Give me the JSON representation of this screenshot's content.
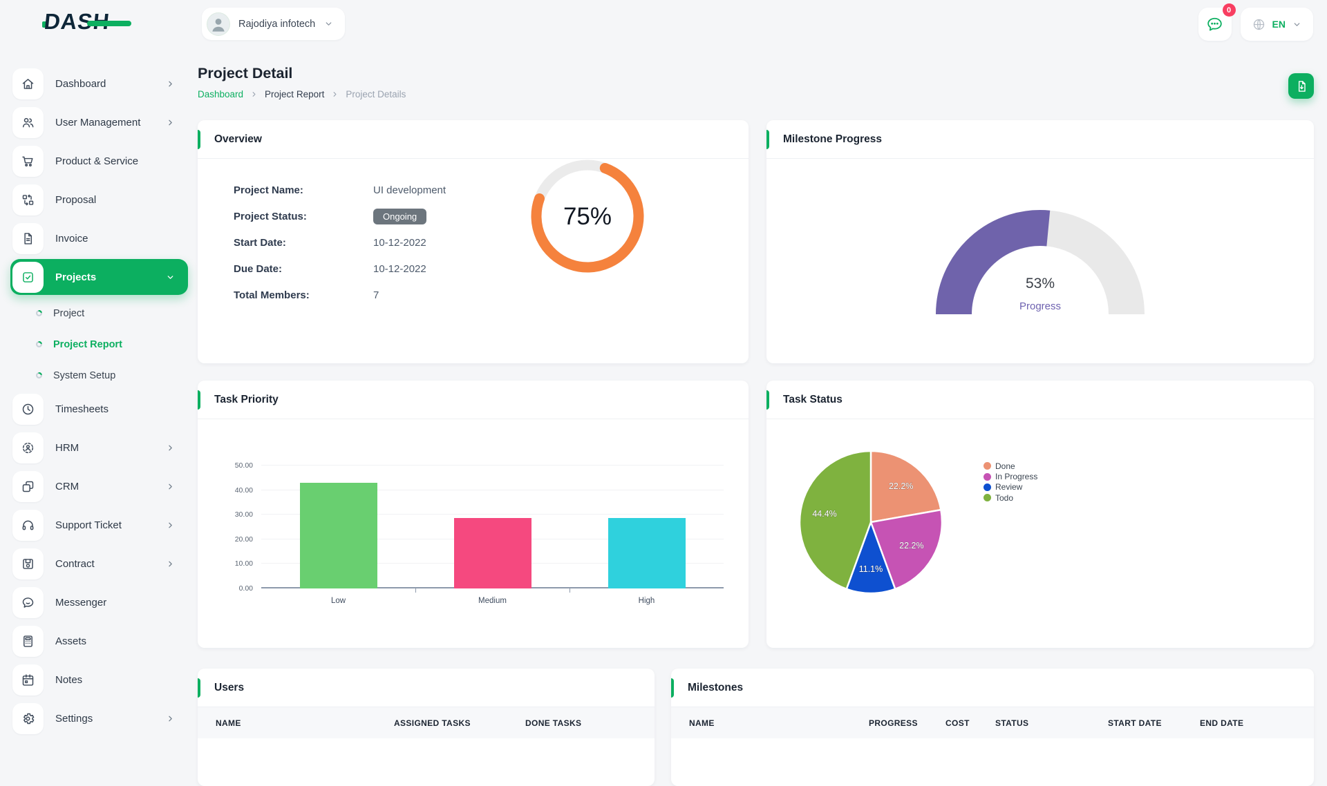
{
  "header": {
    "brand": "DASH",
    "company": {
      "name": "Rajodiya infotech",
      "avatar_icon": "person-icon"
    },
    "messages": {
      "icon": "chat-bubble-icon",
      "badge": "0"
    },
    "language": {
      "icon": "globe-icon",
      "code": "EN"
    }
  },
  "sidebar": {
    "items": [
      {
        "label": "Dashboard",
        "icon": "home-icon",
        "chevron": "right"
      },
      {
        "label": "User Management",
        "icon": "users-icon",
        "chevron": "right"
      },
      {
        "label": "Product & Service",
        "icon": "cart-icon"
      },
      {
        "label": "Proposal",
        "icon": "swap-icon"
      },
      {
        "label": "Invoice",
        "icon": "invoice-icon"
      },
      {
        "label": "Projects",
        "icon": "checkbox-icon",
        "chevron": "down",
        "active": true,
        "children": [
          {
            "label": "Project"
          },
          {
            "label": "Project Report",
            "active": true
          },
          {
            "label": "System Setup"
          }
        ]
      },
      {
        "label": "Timesheets",
        "icon": "clock-icon"
      },
      {
        "label": "HRM",
        "icon": "hrm-icon",
        "chevron": "right"
      },
      {
        "label": "CRM",
        "icon": "crm-icon",
        "chevron": "right"
      },
      {
        "label": "Support Ticket",
        "icon": "headset-icon",
        "chevron": "right"
      },
      {
        "label": "Contract",
        "icon": "save-icon",
        "chevron": "right"
      },
      {
        "label": "Messenger",
        "icon": "chat-icon"
      },
      {
        "label": "Assets",
        "icon": "calculator-icon"
      },
      {
        "label": "Notes",
        "icon": "calendar-icon"
      },
      {
        "label": "Settings",
        "icon": "gear-icon",
        "chevron": "right"
      }
    ]
  },
  "page": {
    "title": "Project Detail",
    "breadcrumb": [
      {
        "label": "Dashboard",
        "state": "link"
      },
      {
        "label": "Project Report",
        "state": "normal"
      },
      {
        "label": "Project Details",
        "state": "current"
      }
    ],
    "export_icon": "file-export-icon"
  },
  "overview": {
    "title": "Overview",
    "fields": [
      {
        "label": "Project Name:",
        "value": "UI development",
        "type": "text"
      },
      {
        "label": "Project Status:",
        "value": "Ongoing",
        "type": "badge"
      },
      {
        "label": "Start Date:",
        "value": "10-12-2022",
        "type": "text"
      },
      {
        "label": "Due Date:",
        "value": "10-12-2022",
        "type": "text"
      },
      {
        "label": "Total Members:",
        "value": "7",
        "type": "text"
      }
    ]
  },
  "milestone_card": {
    "title": "Milestone Progress"
  },
  "task_priority_card": {
    "title": "Task Priority"
  },
  "task_status_card": {
    "title": "Task Status"
  },
  "users_card": {
    "title": "Users",
    "columns": [
      "NAME",
      "ASSIGNED TASKS",
      "DONE TASKS"
    ]
  },
  "milestones_card": {
    "title": "Milestones",
    "columns": [
      "NAME",
      "PROGRESS",
      "COST",
      "STATUS",
      "START DATE",
      "END DATE"
    ]
  },
  "colors": {
    "primary": "#0CAF60",
    "status_badge": "#6C757D",
    "notification_badge": "#F83E61"
  },
  "chart_data": [
    {
      "id": "project-progress",
      "type": "donut",
      "card": "Overview",
      "value": 75,
      "max": 100,
      "center_label": "75%",
      "color": "#F5823D",
      "track_color": "#EBEBEB"
    },
    {
      "id": "milestone-progress",
      "type": "gauge",
      "card": "Milestone Progress",
      "value": 53,
      "max": 100,
      "center_label": "53%",
      "caption": "Progress",
      "color": "#6F63AB",
      "track_color": "#E9E9E9"
    },
    {
      "id": "task-priority",
      "type": "bar",
      "card": "Task Priority",
      "categories": [
        "Low",
        "Medium",
        "High"
      ],
      "values": [
        42.86,
        28.57,
        28.57
      ],
      "colors": [
        "#69CF70",
        "#F5497F",
        "#2FD1DD"
      ],
      "ylim": [
        0,
        50
      ],
      "yticks": [
        "0.00",
        "10.00",
        "20.00",
        "30.00",
        "40.00",
        "50.00"
      ],
      "grid": true,
      "legend_position": "none"
    },
    {
      "id": "task-status",
      "type": "pie",
      "card": "Task Status",
      "labels": [
        "Done",
        "In Progress",
        "Review",
        "Todo"
      ],
      "values": [
        22.2,
        22.2,
        11.1,
        44.4
      ],
      "slice_labels": [
        "22.2%",
        "22.2%",
        "11.1%",
        "44.4%"
      ],
      "colors": [
        "#EC9273",
        "#C653B4",
        "#0E50D0",
        "#7FB23F"
      ],
      "legend_position": "right"
    }
  ]
}
